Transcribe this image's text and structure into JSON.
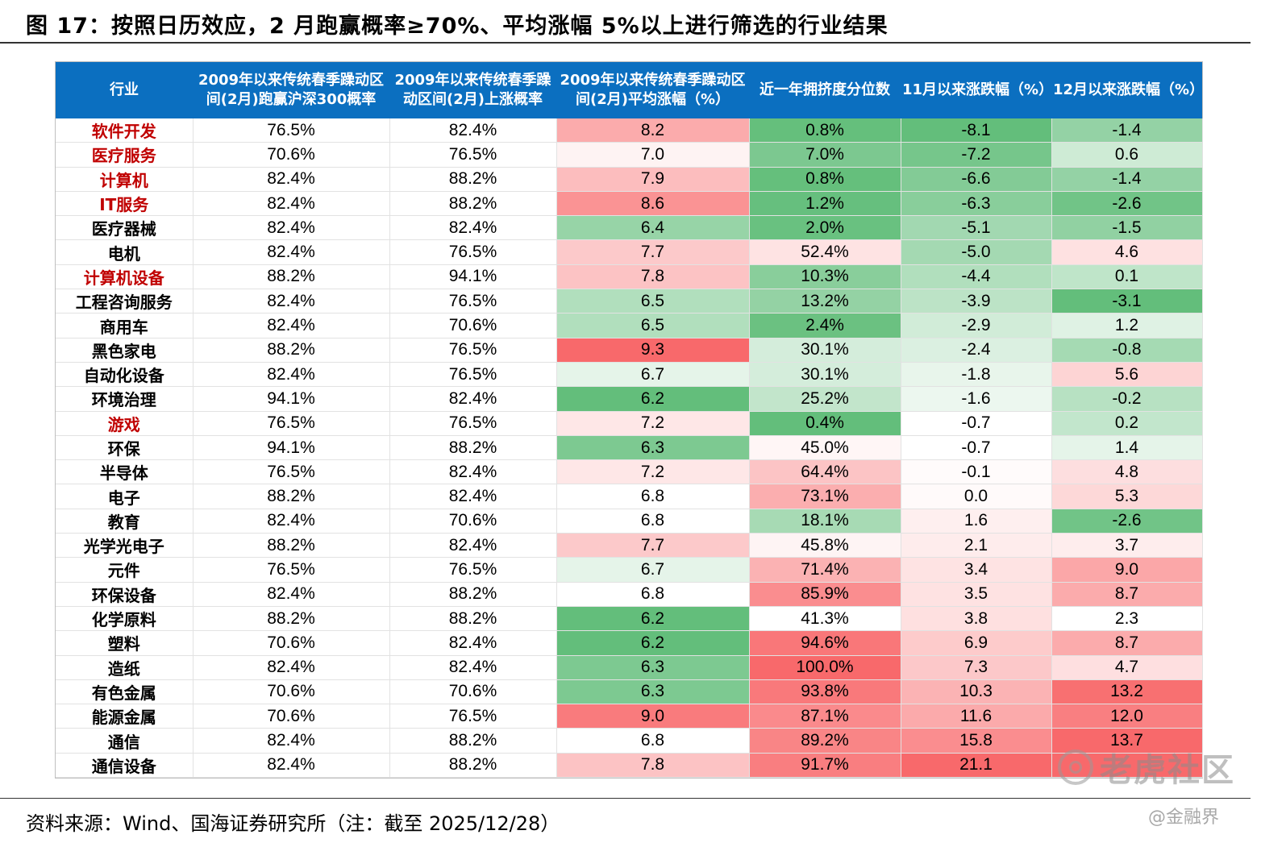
{
  "figure": {
    "title": "图 17：按照日历效应，2 月跑赢概率≥70%、平均涨幅 5%以上进行筛选的行业结果",
    "source": "资料来源：Wind、国海证券研究所（注：截至 2025/12/28）"
  },
  "watermarks": {
    "brand": "老虎社区",
    "credit": "@金融界"
  },
  "colors": {
    "header_bg": "#0b6fc0",
    "highlight_text": "#c00000",
    "positive": "#f8696b",
    "negative": "#63be7b"
  },
  "table": {
    "headers": [
      "行业",
      "2009年以来传统春季躁动区间(2月)跑赢沪深300概率",
      "2009年以来传统春季躁动区间(2月)上涨概率",
      "2009年以来传统春季躁动区间(2月)平均涨幅（%）",
      "近一年拥挤度分位数",
      "11月以来涨跌幅（%）",
      "12月以来涨跌幅（%）"
    ],
    "rows": [
      {
        "industry": "软件开发",
        "highlight": true,
        "beat_prob": "76.5%",
        "up_prob": "82.4%",
        "avg_gain": "8.2",
        "crowding": "0.8%",
        "chg_nov": "-8.1",
        "chg_dec": "-1.4"
      },
      {
        "industry": "医疗服务",
        "highlight": true,
        "beat_prob": "70.6%",
        "up_prob": "76.5%",
        "avg_gain": "7.0",
        "crowding": "7.0%",
        "chg_nov": "-7.2",
        "chg_dec": "0.6"
      },
      {
        "industry": "计算机",
        "highlight": true,
        "beat_prob": "82.4%",
        "up_prob": "88.2%",
        "avg_gain": "7.9",
        "crowding": "0.8%",
        "chg_nov": "-6.6",
        "chg_dec": "-1.4"
      },
      {
        "industry": "IT服务",
        "highlight": true,
        "beat_prob": "82.4%",
        "up_prob": "88.2%",
        "avg_gain": "8.6",
        "crowding": "1.2%",
        "chg_nov": "-6.3",
        "chg_dec": "-2.6"
      },
      {
        "industry": "医疗器械",
        "highlight": false,
        "beat_prob": "82.4%",
        "up_prob": "82.4%",
        "avg_gain": "6.4",
        "crowding": "2.0%",
        "chg_nov": "-5.1",
        "chg_dec": "-1.5"
      },
      {
        "industry": "电机",
        "highlight": false,
        "beat_prob": "82.4%",
        "up_prob": "76.5%",
        "avg_gain": "7.7",
        "crowding": "52.4%",
        "chg_nov": "-5.0",
        "chg_dec": "4.6"
      },
      {
        "industry": "计算机设备",
        "highlight": true,
        "beat_prob": "88.2%",
        "up_prob": "94.1%",
        "avg_gain": "7.8",
        "crowding": "10.3%",
        "chg_nov": "-4.4",
        "chg_dec": "0.1"
      },
      {
        "industry": "工程咨询服务",
        "highlight": false,
        "beat_prob": "82.4%",
        "up_prob": "76.5%",
        "avg_gain": "6.5",
        "crowding": "13.2%",
        "chg_nov": "-3.9",
        "chg_dec": "-3.1"
      },
      {
        "industry": "商用车",
        "highlight": false,
        "beat_prob": "82.4%",
        "up_prob": "70.6%",
        "avg_gain": "6.5",
        "crowding": "2.4%",
        "chg_nov": "-2.9",
        "chg_dec": "1.2"
      },
      {
        "industry": "黑色家电",
        "highlight": false,
        "beat_prob": "88.2%",
        "up_prob": "76.5%",
        "avg_gain": "9.3",
        "crowding": "30.1%",
        "chg_nov": "-2.4",
        "chg_dec": "-0.8"
      },
      {
        "industry": "自动化设备",
        "highlight": false,
        "beat_prob": "82.4%",
        "up_prob": "76.5%",
        "avg_gain": "6.7",
        "crowding": "30.1%",
        "chg_nov": "-1.8",
        "chg_dec": "5.6"
      },
      {
        "industry": "环境治理",
        "highlight": false,
        "beat_prob": "94.1%",
        "up_prob": "82.4%",
        "avg_gain": "6.2",
        "crowding": "25.2%",
        "chg_nov": "-1.6",
        "chg_dec": "-0.2"
      },
      {
        "industry": "游戏",
        "highlight": true,
        "beat_prob": "76.5%",
        "up_prob": "76.5%",
        "avg_gain": "7.2",
        "crowding": "0.4%",
        "chg_nov": "-0.7",
        "chg_dec": "0.2"
      },
      {
        "industry": "环保",
        "highlight": false,
        "beat_prob": "94.1%",
        "up_prob": "88.2%",
        "avg_gain": "6.3",
        "crowding": "45.0%",
        "chg_nov": "-0.7",
        "chg_dec": "1.4"
      },
      {
        "industry": "半导体",
        "highlight": false,
        "beat_prob": "76.5%",
        "up_prob": "82.4%",
        "avg_gain": "7.2",
        "crowding": "64.4%",
        "chg_nov": "-0.1",
        "chg_dec": "4.8"
      },
      {
        "industry": "电子",
        "highlight": false,
        "beat_prob": "88.2%",
        "up_prob": "82.4%",
        "avg_gain": "6.8",
        "crowding": "73.1%",
        "chg_nov": "0.0",
        "chg_dec": "5.3"
      },
      {
        "industry": "教育",
        "highlight": false,
        "beat_prob": "82.4%",
        "up_prob": "70.6%",
        "avg_gain": "6.8",
        "crowding": "18.1%",
        "chg_nov": "1.6",
        "chg_dec": "-2.6"
      },
      {
        "industry": "光学光电子",
        "highlight": false,
        "beat_prob": "88.2%",
        "up_prob": "82.4%",
        "avg_gain": "7.7",
        "crowding": "45.8%",
        "chg_nov": "2.1",
        "chg_dec": "3.7"
      },
      {
        "industry": "元件",
        "highlight": false,
        "beat_prob": "76.5%",
        "up_prob": "76.5%",
        "avg_gain": "6.7",
        "crowding": "71.4%",
        "chg_nov": "3.4",
        "chg_dec": "9.0"
      },
      {
        "industry": "环保设备",
        "highlight": false,
        "beat_prob": "82.4%",
        "up_prob": "88.2%",
        "avg_gain": "6.8",
        "crowding": "85.9%",
        "chg_nov": "3.5",
        "chg_dec": "8.7"
      },
      {
        "industry": "化学原料",
        "highlight": false,
        "beat_prob": "88.2%",
        "up_prob": "88.2%",
        "avg_gain": "6.2",
        "crowding": "41.3%",
        "chg_nov": "3.8",
        "chg_dec": "2.3"
      },
      {
        "industry": "塑料",
        "highlight": false,
        "beat_prob": "70.6%",
        "up_prob": "82.4%",
        "avg_gain": "6.2",
        "crowding": "94.6%",
        "chg_nov": "6.9",
        "chg_dec": "8.7"
      },
      {
        "industry": "造纸",
        "highlight": false,
        "beat_prob": "82.4%",
        "up_prob": "82.4%",
        "avg_gain": "6.3",
        "crowding": "100.0%",
        "chg_nov": "7.3",
        "chg_dec": "4.7"
      },
      {
        "industry": "有色金属",
        "highlight": false,
        "beat_prob": "70.6%",
        "up_prob": "70.6%",
        "avg_gain": "6.3",
        "crowding": "93.8%",
        "chg_nov": "10.3",
        "chg_dec": "13.2"
      },
      {
        "industry": "能源金属",
        "highlight": false,
        "beat_prob": "70.6%",
        "up_prob": "76.5%",
        "avg_gain": "9.0",
        "crowding": "87.1%",
        "chg_nov": "11.6",
        "chg_dec": "12.0"
      },
      {
        "industry": "通信",
        "highlight": false,
        "beat_prob": "82.4%",
        "up_prob": "88.2%",
        "avg_gain": "6.8",
        "crowding": "89.2%",
        "chg_nov": "15.8",
        "chg_dec": "13.7"
      },
      {
        "industry": "通信设备",
        "highlight": false,
        "beat_prob": "82.4%",
        "up_prob": "88.2%",
        "avg_gain": "7.8",
        "crowding": "91.7%",
        "chg_nov": "21.1",
        "chg_dec": ""
      }
    ]
  }
}
